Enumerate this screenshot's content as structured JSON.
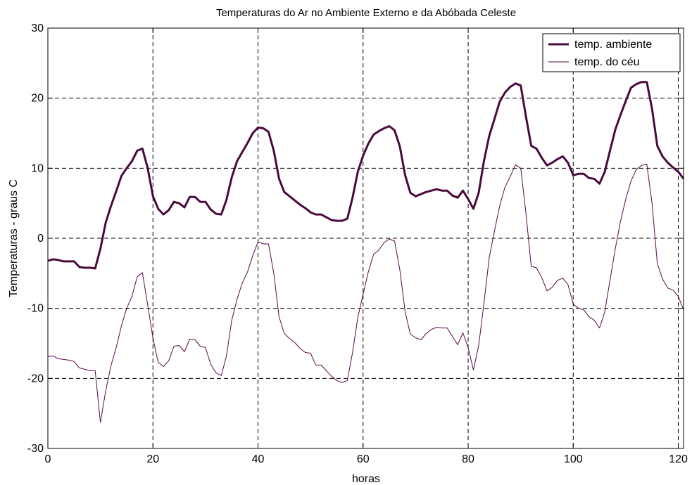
{
  "chart_data": {
    "type": "line",
    "title": "Temperaturas do Ar no Ambiente Externo e da Abóbada Celeste",
    "xlabel": "horas",
    "ylabel": "Temperaturas - graus C",
    "xlim": [
      0,
      121
    ],
    "ylim": [
      -30,
      30
    ],
    "xticks": [
      0,
      20,
      40,
      60,
      80,
      100,
      120
    ],
    "yticks": [
      -30,
      -20,
      -10,
      0,
      10,
      20,
      30
    ],
    "xtick_labels": [
      "0",
      "20",
      "40",
      "60",
      "80",
      "100",
      "120"
    ],
    "ytick_labels": [
      "-30",
      "-20",
      "-10",
      "0",
      "10",
      "20",
      "30"
    ],
    "grid": true,
    "grid_style": "dashed",
    "legend_position": "top-right",
    "x": [
      0,
      1,
      2,
      3,
      4,
      5,
      6,
      7,
      8,
      9,
      10,
      11,
      12,
      13,
      14,
      15,
      16,
      17,
      18,
      19,
      20,
      21,
      22,
      23,
      24,
      25,
      26,
      27,
      28,
      29,
      30,
      31,
      32,
      33,
      34,
      35,
      36,
      37,
      38,
      39,
      40,
      41,
      42,
      43,
      44,
      45,
      46,
      47,
      48,
      49,
      50,
      51,
      52,
      53,
      54,
      55,
      56,
      57,
      58,
      59,
      60,
      61,
      62,
      63,
      64,
      65,
      66,
      67,
      68,
      69,
      70,
      71,
      72,
      73,
      74,
      75,
      76,
      77,
      78,
      79,
      80,
      81,
      82,
      83,
      84,
      85,
      86,
      87,
      88,
      89,
      90,
      91,
      92,
      93,
      94,
      95,
      96,
      97,
      98,
      99,
      100,
      101,
      102,
      103,
      104,
      105,
      106,
      107,
      108,
      109,
      110,
      111,
      112,
      113,
      114,
      115,
      116,
      117,
      118,
      119,
      120,
      121
    ],
    "series": [
      {
        "name": "temp. ambiente",
        "color": "#4a0a3c",
        "width": 3,
        "values": [
          -3.2,
          -3.0,
          -3.1,
          -3.3,
          -3.3,
          -3.3,
          -4.1,
          -4.2,
          -4.2,
          -4.3,
          -1.5,
          2.2,
          4.6,
          6.7,
          8.9,
          10.0,
          11.0,
          12.5,
          12.8,
          10.0,
          6.0,
          4.2,
          3.4,
          4.0,
          5.2,
          5.0,
          4.4,
          5.9,
          5.9,
          5.2,
          5.2,
          4.1,
          3.5,
          3.4,
          5.5,
          8.7,
          11.0,
          12.3,
          13.6,
          15.0,
          15.8,
          15.7,
          15.2,
          12.5,
          8.5,
          6.6,
          6.0,
          5.4,
          4.8,
          4.3,
          3.7,
          3.4,
          3.4,
          3.0,
          2.6,
          2.5,
          2.5,
          2.8,
          5.8,
          9.5,
          11.8,
          13.5,
          14.8,
          15.3,
          15.7,
          16.0,
          15.4,
          13.1,
          9.0,
          6.5,
          6.0,
          6.3,
          6.6,
          6.8,
          7.0,
          6.8,
          6.8,
          6.1,
          5.8,
          6.8,
          5.6,
          4.2,
          6.5,
          11.0,
          14.6,
          17.0,
          19.5,
          20.8,
          21.6,
          22.1,
          21.8,
          17.4,
          13.2,
          12.8,
          11.5,
          10.4,
          10.8,
          11.3,
          11.7,
          10.8,
          9.0,
          9.2,
          9.2,
          8.6,
          8.5,
          7.8,
          9.5,
          12.5,
          15.5,
          17.6,
          19.6,
          21.5,
          22.0,
          22.3,
          22.3,
          18.5,
          13.2,
          11.7,
          10.8,
          10.1,
          9.5,
          8.5
        ]
      },
      {
        "name": "temp. do céu",
        "color": "#5a0a4a",
        "width": 1,
        "values": [
          -16.9,
          -16.8,
          -17.2,
          -17.3,
          -17.4,
          -17.6,
          -18.5,
          -18.7,
          -18.9,
          -18.9,
          -26.3,
          -21.8,
          -18.2,
          -15.6,
          -12.5,
          -10.0,
          -8.3,
          -5.5,
          -4.9,
          -9.5,
          -14.3,
          -17.7,
          -18.3,
          -17.5,
          -15.4,
          -15.3,
          -16.2,
          -14.4,
          -14.5,
          -15.4,
          -15.6,
          -18.0,
          -19.2,
          -19.6,
          -16.8,
          -11.7,
          -8.7,
          -6.4,
          -4.8,
          -2.5,
          -0.5,
          -0.8,
          -0.8,
          -5.0,
          -11.2,
          -13.6,
          -14.3,
          -14.9,
          -15.7,
          -16.3,
          -16.4,
          -18.1,
          -18.1,
          -18.9,
          -19.7,
          -20.3,
          -20.6,
          -20.3,
          -16.3,
          -11.3,
          -8.0,
          -4.8,
          -2.3,
          -1.7,
          -0.6,
          -0.1,
          -0.4,
          -4.5,
          -10.5,
          -13.7,
          -14.2,
          -14.5,
          -13.6,
          -13.0,
          -12.7,
          -12.8,
          -12.8,
          -14.0,
          -15.2,
          -13.5,
          -15.6,
          -18.8,
          -15.3,
          -9.3,
          -2.8,
          1.0,
          4.6,
          7.3,
          8.8,
          10.5,
          10.0,
          3.6,
          -4.0,
          -4.2,
          -5.6,
          -7.5,
          -7.0,
          -6.0,
          -5.7,
          -6.6,
          -9.4,
          -10.0,
          -10.2,
          -11.2,
          -11.7,
          -12.8,
          -10.5,
          -6.0,
          -1.5,
          2.4,
          5.6,
          8.2,
          9.8,
          10.4,
          10.6,
          5.0,
          -3.6,
          -5.8,
          -7.1,
          -7.4,
          -8.3,
          -10.2
        ]
      }
    ]
  }
}
